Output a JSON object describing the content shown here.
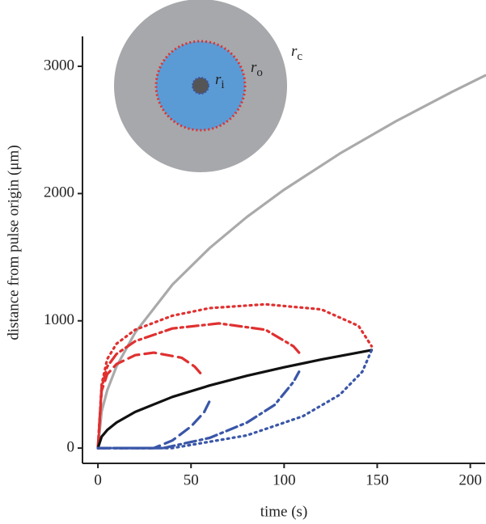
{
  "chart_data": {
    "type": "line",
    "x_label": "time (s)",
    "y_label": "distance from pulse origin (μm)",
    "xlim": [
      -8.3,
      208
    ],
    "ylim": [
      -120,
      3235
    ],
    "xticks": [
      0,
      50,
      100,
      150,
      200
    ],
    "yticks": [
      0,
      1000,
      2000,
      3000
    ],
    "inset_labels": [
      {
        "main": "r",
        "sub": "c"
      },
      {
        "main": "r",
        "sub": "o"
      },
      {
        "main": "r",
        "sub": "i"
      }
    ],
    "series": [
      {
        "color": "#aaaaaa",
        "style": "solid",
        "x": [
          0,
          2,
          5,
          10,
          20,
          40,
          60,
          80,
          100,
          130,
          160,
          190,
          208
        ],
        "values": [
          0,
          287,
          454,
          642,
          908,
          1284,
          1572,
          1816,
          2030,
          2315,
          2568,
          2798,
          2928
        ]
      },
      {
        "color": "#e03030",
        "style": "dotted",
        "x": [
          0,
          2,
          5,
          10,
          20,
          40,
          60,
          90,
          120,
          140,
          147
        ],
        "values": [
          0,
          500,
          700,
          820,
          930,
          1040,
          1100,
          1130,
          1090,
          960,
          800
        ]
      },
      {
        "color": "#e03030",
        "style": "dashdot",
        "x": [
          0,
          2,
          5,
          10,
          20,
          40,
          65,
          90,
          105,
          108
        ],
        "values": [
          0,
          480,
          640,
          740,
          840,
          940,
          980,
          930,
          800,
          750
        ]
      },
      {
        "color": "#e03030",
        "style": "dashed",
        "x": [
          0,
          2,
          5,
          10,
          20,
          30,
          45,
          52,
          55
        ],
        "values": [
          0,
          450,
          580,
          660,
          730,
          750,
          710,
          640,
          590
        ]
      },
      {
        "color": "#111111",
        "style": "solid",
        "x": [
          0,
          2,
          5,
          10,
          20,
          40,
          60,
          80,
          100,
          120,
          147
        ],
        "values": [
          0,
          90,
          142,
          201,
          284,
          402,
          492,
          568,
          635,
          696,
          770
        ]
      },
      {
        "color": "#3a56a8",
        "style": "dashed",
        "x": [
          0,
          30,
          40,
          50,
          57,
          61
        ],
        "values": [
          0,
          0,
          60,
          170,
          280,
          400
        ]
      },
      {
        "color": "#3a56a8",
        "style": "dashdot",
        "x": [
          0,
          35,
          60,
          80,
          95,
          105,
          108
        ],
        "values": [
          0,
          0,
          80,
          200,
          340,
          520,
          600
        ]
      },
      {
        "color": "#3a56a8",
        "style": "dotted",
        "x": [
          0,
          40,
          80,
          110,
          130,
          142,
          147
        ],
        "values": [
          0,
          0,
          100,
          250,
          420,
          600,
          770
        ]
      }
    ]
  }
}
